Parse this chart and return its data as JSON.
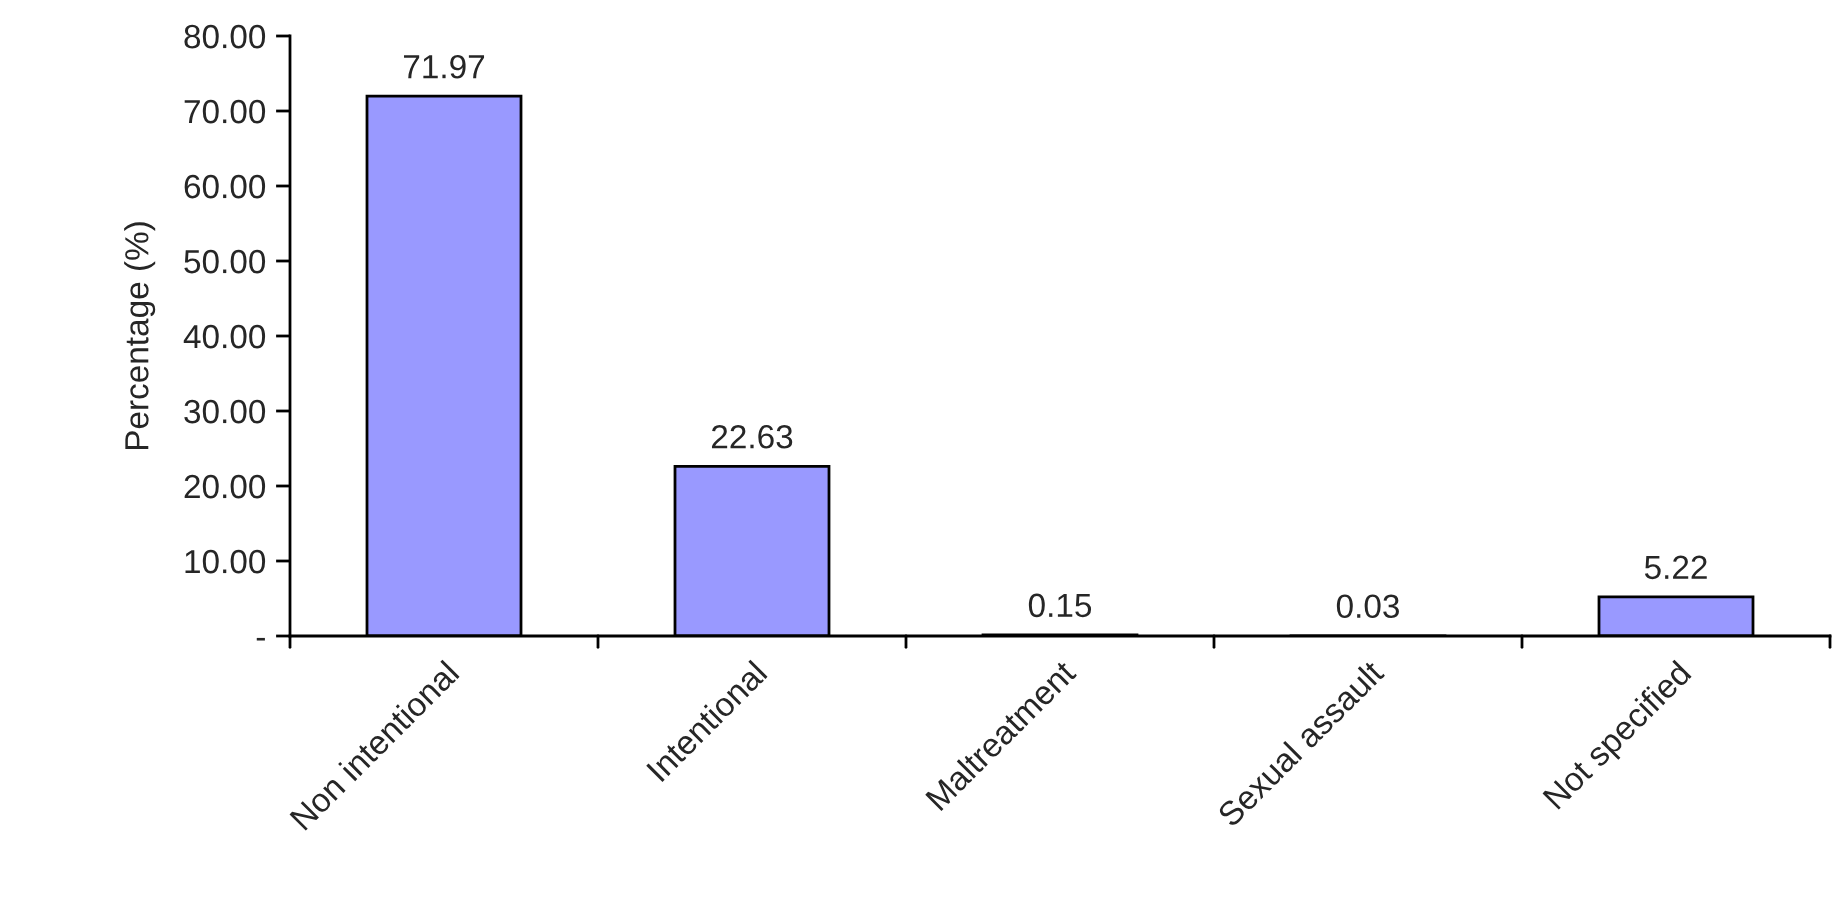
{
  "chart_data": {
    "type": "bar",
    "ylabel": "Percentage (%)",
    "categories": [
      "Non intentional",
      "Intentional",
      "Maltreatment",
      "Sexual assault",
      "Not specified"
    ],
    "values": [
      71.97,
      22.63,
      0.15,
      0.03,
      5.22
    ],
    "color": "#9999ff",
    "data_labels": true,
    "ylim": [
      0,
      80
    ],
    "yticks": [
      {
        "value": 0,
        "label": "-"
      },
      {
        "value": 10,
        "label": "10.00"
      },
      {
        "value": 20,
        "label": "20.00"
      },
      {
        "value": 30,
        "label": "30.00"
      },
      {
        "value": 40,
        "label": "40.00"
      },
      {
        "value": 50,
        "label": "50.00"
      },
      {
        "value": 60,
        "label": "60.00"
      },
      {
        "value": 70,
        "label": "70.00"
      },
      {
        "value": 80,
        "label": "80.00"
      }
    ],
    "grid": false
  }
}
